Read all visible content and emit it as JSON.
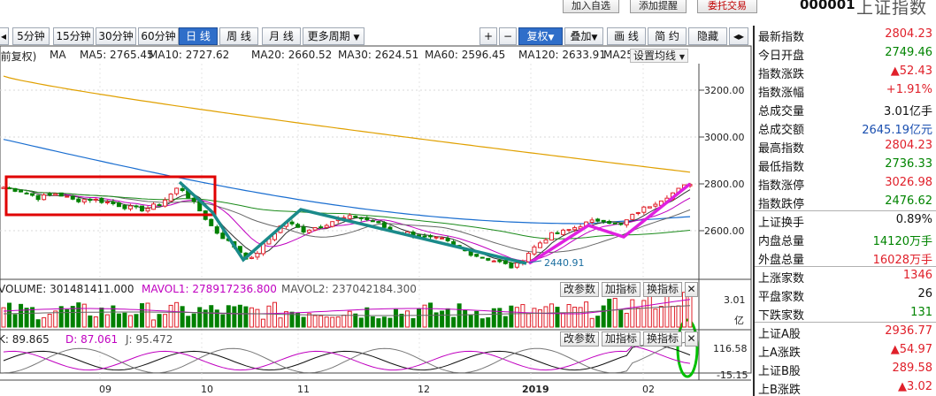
{
  "header": {
    "buttons": [
      "加入自选",
      "添加提醒",
      "委托交易"
    ],
    "stock_code": "000001",
    "stock_name": "上证指数"
  },
  "toolbar": {
    "periods": [
      "5分钟",
      "15分钟",
      "30分钟",
      "60分钟",
      "日 线",
      "周 线",
      "月 线",
      "更多周期"
    ],
    "active_period": "日 线",
    "right_buttons": [
      "+",
      "−",
      "复权",
      "叠加",
      "画 线",
      "简 约",
      "隐藏",
      "◂▸",
      "⛶"
    ]
  },
  "ma_legend": {
    "prefix": "(前复权)",
    "ma": "MA",
    "items": [
      {
        "label": "MA5: 2765.45",
        "color": "#333333"
      },
      {
        "label": "MA10: 2727.62",
        "color": "#c000c0"
      },
      {
        "label": "MA20: 2660.52",
        "color": "#555555"
      },
      {
        "label": "MA30: 2624.51",
        "color": "#333333"
      },
      {
        "label": "MA60: 2596.45",
        "color": "#1a8a1a"
      },
      {
        "label": "MA120: 2633.91",
        "color": "#1a6ed0"
      },
      {
        "label": "MA25",
        "color": "#e0a000"
      }
    ],
    "settings": "设置均线"
  },
  "price_axis": [
    "3200.00",
    "3000.00",
    "2800.00",
    "2600.00"
  ],
  "low_label": "2440.91",
  "volume": {
    "legend": [
      {
        "label": "VOLUME: 301481411.000",
        "color": "#111111"
      },
      {
        "label": "MAVOL1: 278917236.800",
        "color": "#c000c0"
      },
      {
        "label": "MAVOL2: 237042184.300",
        "color": "#555555"
      }
    ],
    "axis": [
      "3.01",
      "亿"
    ]
  },
  "kdj": {
    "legend": [
      {
        "label": "K: 89.865",
        "color": "#111111"
      },
      {
        "label": "D: 87.061",
        "color": "#c000c0"
      },
      {
        "label": "J: 95.472",
        "color": "#555555"
      }
    ],
    "axis": [
      "116.58",
      "-15.15"
    ]
  },
  "panel_buttons": [
    "改参数",
    "加指标",
    "换指标"
  ],
  "x_axis": [
    "09",
    "10",
    "11",
    "12",
    "2019",
    "02"
  ],
  "info_panel": [
    {
      "k": "最新指数",
      "v": "2804.23",
      "c": "red"
    },
    {
      "k": "今日开盘",
      "v": "2749.46",
      "c": "green"
    },
    {
      "k": "指数涨跌",
      "v": "▲52.43",
      "c": "red"
    },
    {
      "k": "指数涨幅",
      "v": "+1.91%",
      "c": "red"
    },
    {
      "k": "总成交量",
      "v": "3.01亿手",
      "c": "black"
    },
    {
      "k": "总成交额",
      "v": "2645.19亿元",
      "c": "blue"
    },
    {
      "k": "最高指数",
      "v": "2804.23",
      "c": "red"
    },
    {
      "k": "最低指数",
      "v": "2736.33",
      "c": "green"
    },
    {
      "k": "指数涨停",
      "v": "3026.98",
      "c": "red"
    },
    {
      "k": "指数跌停",
      "v": "2476.62",
      "c": "green"
    },
    {
      "k": "上证换手",
      "v": "0.89%",
      "c": "black"
    },
    {
      "k": "内盘总量",
      "v": "14120万手",
      "c": "green"
    },
    {
      "k": "外盘总量",
      "v": "16028万手",
      "c": "red"
    },
    {
      "k": "上涨家数",
      "v": "1346",
      "c": "red"
    },
    {
      "k": "平盘家数",
      "v": "26",
      "c": "black"
    },
    {
      "k": "下跌家数",
      "v": "131",
      "c": "green"
    },
    {
      "k": "上证A股",
      "v": "2936.77",
      "c": "red"
    },
    {
      "k": "上A涨跌",
      "v": "▲54.97",
      "c": "red"
    },
    {
      "k": "上证B股",
      "v": "289.58",
      "c": "red"
    },
    {
      "k": "上B涨跌",
      "v": "▲3.02",
      "c": "red"
    }
  ],
  "chart_data": {
    "type": "candlestick",
    "title": "上证指数 日线",
    "ylim": [
      2400,
      3300
    ],
    "yticks": [
      2600,
      2800,
      3000,
      3200
    ],
    "x_labels": [
      "09",
      "10",
      "11",
      "12",
      "2019",
      "02"
    ],
    "low_point": 2440.91,
    "latest": 2804.23,
    "close_path": [
      2785,
      2770,
      2740,
      2760,
      2730,
      2735,
      2720,
      2700,
      2690,
      2720,
      2790,
      2700,
      2600,
      2540,
      2470,
      2560,
      2640,
      2600,
      2620,
      2650,
      2660,
      2640,
      2600,
      2590,
      2570,
      2560,
      2520,
      2490,
      2470,
      2441,
      2520,
      2580,
      2600,
      2630,
      2650,
      2620,
      2680,
      2720,
      2760,
      2804
    ],
    "colors": {
      "up": "#e0202a",
      "down": "#008000",
      "annotation_box": "#e00000",
      "trend_line": "#1a8a8a",
      "uptrend_line": "#e020e0",
      "highlight": "#00c000"
    }
  }
}
